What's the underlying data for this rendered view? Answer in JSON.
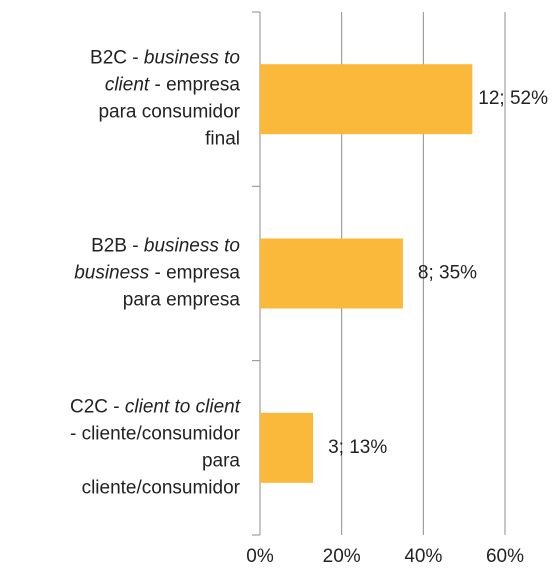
{
  "chart_data": {
    "type": "barh",
    "categories": [
      [
        [
          {
            "text": "B2C - "
          },
          {
            "text": "business to",
            "italic": true
          }
        ],
        [
          {
            "text": "client",
            "italic": true
          },
          {
            "text": " - empresa"
          }
        ],
        [
          {
            "text": "para consumidor"
          }
        ],
        [
          {
            "text": "final"
          }
        ]
      ],
      [
        [
          {
            "text": "B2B - "
          },
          {
            "text": "business to",
            "italic": true
          }
        ],
        [
          {
            "text": "business",
            "italic": true
          },
          {
            "text": " - empresa"
          }
        ],
        [
          {
            "text": "para empresa"
          }
        ]
      ],
      [
        [
          {
            "text": "C2C - "
          },
          {
            "text": "client to client",
            "italic": true
          }
        ],
        [
          {
            "text": "- cliente/consumidor"
          }
        ],
        [
          {
            "text": "para"
          }
        ],
        [
          {
            "text": "cliente/consumidor"
          }
        ]
      ]
    ],
    "values": [
      52,
      35,
      13
    ],
    "value_labels": [
      "12; 52%",
      "8; 35%",
      "3; 13%"
    ],
    "color": "#fbb93b",
    "xlim": [
      0,
      60
    ],
    "xticks": [
      {
        "value": 0,
        "label": "0%"
      },
      {
        "value": 20,
        "label": "20%"
      },
      {
        "value": 40,
        "label": "40%"
      },
      {
        "value": 60,
        "label": "60%"
      }
    ],
    "grid": true
  }
}
